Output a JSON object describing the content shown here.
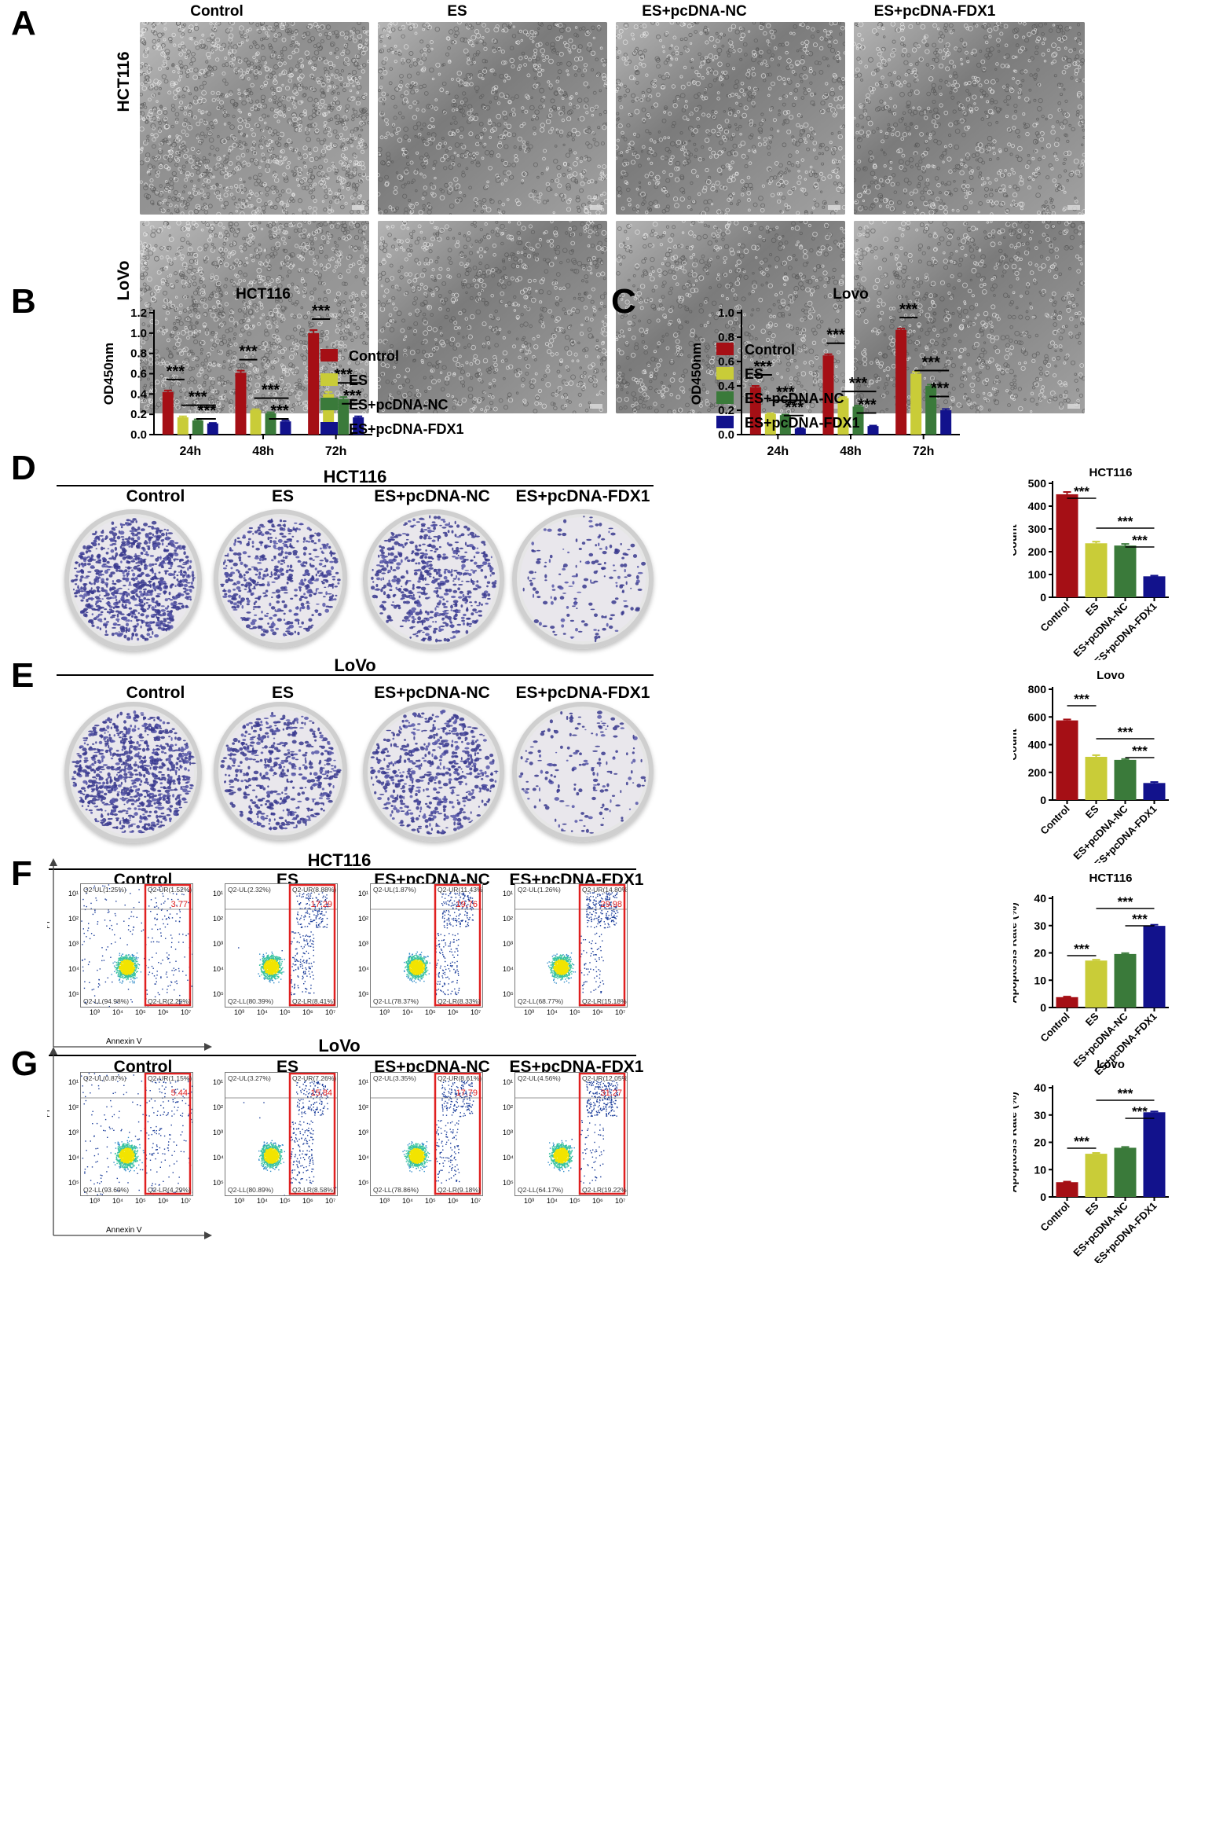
{
  "panels": {
    "A": {
      "label": "A",
      "columns": [
        "Control",
        "ES",
        "ES+pcDNA-NC",
        "ES+pcDNA-FDX1"
      ],
      "rows": [
        "HCT116",
        "LoVo"
      ]
    },
    "B": {
      "label": "B",
      "title": "HCT116"
    },
    "C": {
      "label": "C",
      "title": "Lovo"
    },
    "D": {
      "label": "D",
      "section_title": "HCT116",
      "columns": [
        "Control",
        "ES",
        "ES+pcDNA-NC",
        "ES+pcDNA-FDX1"
      ]
    },
    "E": {
      "label": "E",
      "section_title": "LoVo",
      "columns": [
        "Control",
        "ES",
        "ES+pcDNA-NC",
        "ES+pcDNA-FDX1"
      ]
    },
    "F": {
      "label": "F",
      "section_title": "HCT116",
      "columns": [
        "Control",
        "ES",
        "ES+pcDNA-NC",
        "ES+pcDNA-FDX1"
      ],
      "y_axis": "PI",
      "x_axis": "Annexin V",
      "plots": [
        {
          "ul": "Q2-UL(1.25%)",
          "ur": "Q2-UR(1.52%)",
          "ll": "Q2-LL(94.98%)",
          "lr": "Q2-LR(2.25%)",
          "total": "3.77"
        },
        {
          "ul": "Q2-UL(2.32%)",
          "ur": "Q2-UR(8.88%)",
          "ll": "Q2-LL(80.39%)",
          "lr": "Q2-LR(8.41%)",
          "total": "17.29"
        },
        {
          "ul": "Q2-UL(1.87%)",
          "ur": "Q2-UR(11.43%)",
          "ll": "Q2-LL(78.37%)",
          "lr": "Q2-LR(8.33%)",
          "total": "19.76"
        },
        {
          "ul": "Q2-UL(1.26%)",
          "ur": "Q2-UR(14.80%)",
          "ll": "Q2-LL(68.77%)",
          "lr": "Q2-LR(15.18%)",
          "total": "29.98"
        }
      ]
    },
    "G": {
      "label": "G",
      "section_title": "LoVo",
      "columns": [
        "Control",
        "ES",
        "ES+pcDNA-NC",
        "ES+pcDNA-FDX1"
      ],
      "y_axis": "PI",
      "x_axis": "Annexin V",
      "plots": [
        {
          "ul": "Q2-UL(0.87%)",
          "ur": "Q2-UR(1.15%)",
          "ll": "Q2-LL(93.69%)",
          "lr": "Q2-LR(4.29%)",
          "total": "5.44"
        },
        {
          "ul": "Q2-UL(3.27%)",
          "ur": "Q2-UR(7.26%)",
          "ll": "Q2-LL(80.89%)",
          "lr": "Q2-LR(8.58%)",
          "total": "15.84"
        },
        {
          "ul": "Q2-UL(3.35%)",
          "ur": "Q2-UR(8.61%)",
          "ll": "Q2-LL(78.86%)",
          "lr": "Q2-LR(9.18%)",
          "total": "17.79"
        },
        {
          "ul": "Q2-UL(4.56%)",
          "ur": "Q2-UR(12.05%)",
          "ll": "Q2-LL(64.17%)",
          "lr": "Q2-LR(19.22%)",
          "total": "31.27"
        }
      ]
    }
  },
  "colors": {
    "control": "#a50f15",
    "es": "#c9cc38",
    "nc": "#3a7a3a",
    "fdx1": "#12128c",
    "redbox": "#e02020"
  },
  "flow_ticks": {
    "x": [
      "10³",
      "10⁴",
      "10⁵",
      "10⁶",
      "10⁷"
    ],
    "y": [
      "10¹",
      "10²",
      "10³",
      "10⁴",
      "10⁵"
    ]
  },
  "chart_data": [
    {
      "id": "B",
      "type": "bar",
      "title": "HCT116",
      "ylabel": "OD450nm",
      "xlabel": "",
      "categories": [
        "24h",
        "48h",
        "72h"
      ],
      "ylim": [
        0,
        1.2
      ],
      "yticks": [
        "0.0",
        "0.2",
        "0.4",
        "0.6",
        "0.8",
        "1.0",
        "1.2"
      ],
      "series": [
        {
          "name": "Control",
          "values": [
            0.42,
            0.61,
            1.0
          ]
        },
        {
          "name": "ES",
          "values": [
            0.17,
            0.24,
            0.4
          ]
        },
        {
          "name": "ES+pcDNA-NC",
          "values": [
            0.14,
            0.21,
            0.35
          ]
        },
        {
          "name": "ES+pcDNA-FDX1",
          "values": [
            0.11,
            0.13,
            0.17
          ]
        }
      ],
      "errors": [
        [
          0.015,
          0.02,
          0.03
        ],
        [
          0.01,
          0.01,
          0.02
        ],
        [
          0.01,
          0.01,
          0.02
        ],
        [
          0.005,
          0.008,
          0.01
        ]
      ],
      "significance": "***",
      "legend": "right"
    },
    {
      "id": "C",
      "type": "bar",
      "title": "Lovo",
      "ylabel": "OD450nm",
      "xlabel": "",
      "categories": [
        "24h",
        "48h",
        "72h"
      ],
      "ylim": [
        0,
        1.0
      ],
      "yticks": [
        "0.0",
        "0.2",
        "0.4",
        "0.6",
        "0.8",
        "1.0"
      ],
      "series": [
        {
          "name": "Control",
          "values": [
            0.39,
            0.65,
            0.86
          ]
        },
        {
          "name": "ES",
          "values": [
            0.17,
            0.3,
            0.5
          ]
        },
        {
          "name": "ES+pcDNA-NC",
          "values": [
            0.16,
            0.23,
            0.4
          ]
        },
        {
          "name": "ES+pcDNA-FDX1",
          "values": [
            0.05,
            0.07,
            0.2
          ]
        }
      ],
      "errors": [
        [
          0.01,
          0.01,
          0.01
        ],
        [
          0.005,
          0.008,
          0.015
        ],
        [
          0.005,
          0.008,
          0.01
        ],
        [
          0.003,
          0.004,
          0.01
        ]
      ],
      "significance": "***",
      "legend": "right"
    },
    {
      "id": "D",
      "type": "bar",
      "title": "HCT116",
      "ylabel": "Count",
      "xlabel": "",
      "categories": [
        "Control",
        "ES",
        "ES+pcDNA-NC",
        "ES+pcDNA-FDX1"
      ],
      "ylim": [
        0,
        500
      ],
      "yticks": [
        "0",
        "100",
        "200",
        "300",
        "400",
        "500"
      ],
      "values": [
        452,
        237,
        227,
        92
      ],
      "errors": [
        10,
        7,
        7,
        3
      ],
      "significance": "***"
    },
    {
      "id": "E",
      "type": "bar",
      "title": "Lovo",
      "ylabel": "Count",
      "xlabel": "",
      "categories": [
        "Control",
        "ES",
        "ES+pcDNA-NC",
        "ES+pcDNA-FDX1"
      ],
      "ylim": [
        0,
        800
      ],
      "yticks": [
        "0",
        "200",
        "400",
        "600",
        "800"
      ],
      "values": [
        575,
        312,
        290,
        123
      ],
      "errors": [
        7,
        12,
        6,
        7
      ],
      "significance": "***"
    },
    {
      "id": "F",
      "type": "bar",
      "title": "HCT116",
      "ylabel": "Apoptosis Rate (%)",
      "xlabel": "",
      "categories": [
        "Control",
        "ES",
        "ES+pcDNA-NC",
        "ES+pcDNA-FDX1"
      ],
      "ylim": [
        0,
        40
      ],
      "yticks": [
        "0",
        "10",
        "20",
        "30",
        "40"
      ],
      "values": [
        3.8,
        17.2,
        19.6,
        29.9
      ],
      "errors": [
        0.2,
        0.3,
        0.3,
        0.4
      ],
      "significance": "***"
    },
    {
      "id": "G",
      "type": "bar",
      "title": "Lovo",
      "ylabel": "Apoptosis Rate (%)",
      "xlabel": "",
      "categories": [
        "Control",
        "ES",
        "ES+pcDNA-NC",
        "ES+pcDNA-FDX1"
      ],
      "ylim": [
        0,
        40
      ],
      "yticks": [
        "0",
        "10",
        "20",
        "30",
        "40"
      ],
      "values": [
        5.4,
        15.8,
        18.0,
        31.0
      ],
      "errors": [
        0.2,
        0.3,
        0.3,
        0.3
      ],
      "significance": "***"
    }
  ]
}
